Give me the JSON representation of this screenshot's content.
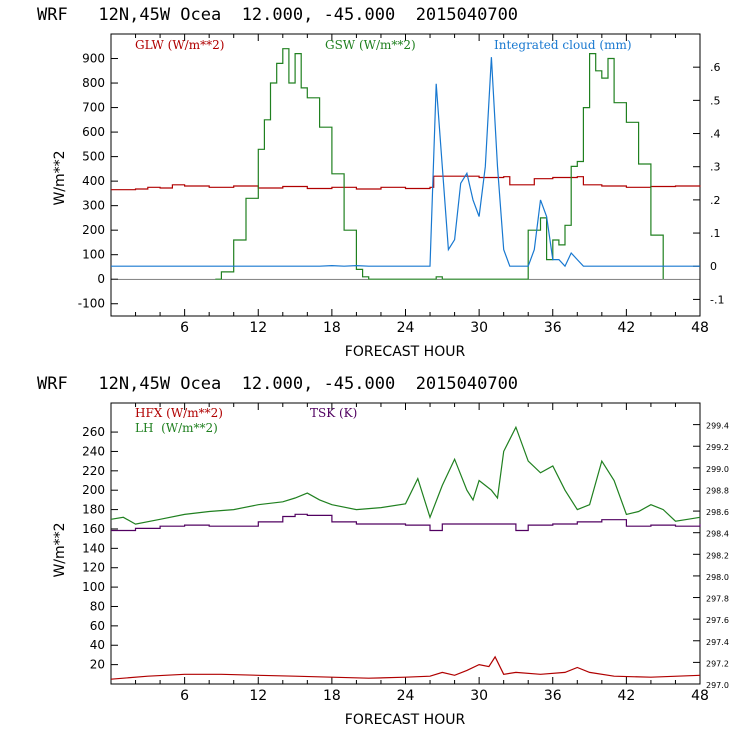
{
  "chart_data": [
    {
      "type": "line",
      "title": "WRF   12N,45W Ocea  12.000, -45.000  2015040700",
      "xlabel": "FORECAST HOUR",
      "ylabel": "W/m**2",
      "xlim": [
        0,
        48
      ],
      "ylim": [
        -150,
        1000
      ],
      "y2lim": [
        -0.15,
        0.7
      ],
      "xticks": [
        "6",
        "12",
        "18",
        "24",
        "30",
        "36",
        "42",
        "48"
      ],
      "xtick_values": [
        6,
        12,
        18,
        24,
        30,
        36,
        42,
        48
      ],
      "yticks": [
        "-100",
        "0",
        "100",
        "200",
        "300",
        "400",
        "500",
        "600",
        "700",
        "800",
        "900"
      ],
      "ytick_values": [
        -100,
        0,
        100,
        200,
        300,
        400,
        500,
        600,
        700,
        800,
        900
      ],
      "y2ticks": [
        "-.1",
        "0",
        ".1",
        ".2",
        ".3",
        ".4",
        ".5",
        ".6"
      ],
      "y2tick_values": [
        -0.1,
        0,
        0.1,
        0.2,
        0.3,
        0.4,
        0.5,
        0.6
      ],
      "series": [
        {
          "name": "GLW (W/m**2)",
          "color": "#b00000",
          "axis": "left",
          "x": [
            0,
            2,
            3,
            4,
            5,
            6,
            8,
            10,
            12,
            14,
            16,
            18,
            20,
            22,
            24,
            26,
            26.3,
            30,
            32,
            32.5,
            34,
            34.5,
            36,
            38,
            38.5,
            40,
            42,
            44,
            46,
            48
          ],
          "y": [
            365,
            368,
            375,
            372,
            385,
            380,
            375,
            380,
            372,
            378,
            370,
            375,
            368,
            375,
            370,
            375,
            420,
            415,
            418,
            385,
            385,
            410,
            415,
            418,
            385,
            380,
            375,
            378,
            380,
            382
          ]
        },
        {
          "name": "GSW (W/m**2)",
          "color": "#208020",
          "axis": "left",
          "x": [
            8.5,
            9,
            10,
            11,
            12,
            12.5,
            13,
            13.5,
            14,
            14.5,
            15,
            15.5,
            16,
            17,
            18,
            19,
            20,
            20.5,
            21,
            26,
            26.5,
            27,
            33.5,
            34,
            35,
            35.5,
            36,
            36.5,
            37,
            37.5,
            38,
            38.5,
            39,
            39.5,
            40,
            40.5,
            41,
            42,
            43,
            44,
            45
          ],
          "y": [
            0,
            30,
            160,
            330,
            530,
            650,
            800,
            880,
            940,
            800,
            920,
            780,
            740,
            620,
            430,
            200,
            40,
            10,
            0,
            0,
            10,
            0,
            0,
            200,
            250,
            80,
            160,
            140,
            220,
            460,
            480,
            700,
            920,
            850,
            820,
            900,
            720,
            640,
            470,
            180,
            0
          ]
        },
        {
          "name": "Integrated cloud (mm)",
          "color": "#1878d0",
          "axis": "right",
          "x": [
            0,
            17,
            18,
            19,
            20,
            21,
            26,
            26.5,
            27,
            27.5,
            28,
            28.5,
            29,
            29.5,
            30,
            30.5,
            31,
            31.5,
            32,
            32.5,
            33,
            34,
            34.5,
            35,
            35.5,
            36,
            36.5,
            37,
            37.5,
            38,
            38.5,
            48
          ],
          "y": [
            0,
            0,
            0.002,
            0,
            0.002,
            0,
            0,
            0.55,
            0.3,
            0.05,
            0.08,
            0.25,
            0.28,
            0.2,
            0.15,
            0.3,
            0.63,
            0.3,
            0.05,
            0,
            0,
            0,
            0.05,
            0.2,
            0.15,
            0.02,
            0.02,
            0,
            0.04,
            0.02,
            0,
            0
          ]
        }
      ]
    },
    {
      "type": "line",
      "title": "WRF   12N,45W Ocea  12.000, -45.000  2015040700",
      "xlabel": "FORECAST HOUR",
      "ylabel": "W/m**2",
      "xlim": [
        0,
        48
      ],
      "ylim": [
        0,
        290
      ],
      "y2lim": [
        297.0,
        299.6
      ],
      "xticks": [
        "6",
        "12",
        "18",
        "24",
        "30",
        "36",
        "42",
        "48"
      ],
      "xtick_values": [
        6,
        12,
        18,
        24,
        30,
        36,
        42,
        48
      ],
      "yticks": [
        "20",
        "40",
        "60",
        "80",
        "100",
        "120",
        "140",
        "160",
        "180",
        "200",
        "220",
        "240",
        "260"
      ],
      "ytick_values": [
        20,
        40,
        60,
        80,
        100,
        120,
        140,
        160,
        180,
        200,
        220,
        240,
        260
      ],
      "y2ticks": [
        "297.0",
        "297.2",
        "297.4",
        "297.6",
        "297.8",
        "298.0",
        "298.2",
        "298.4",
        "298.6",
        "298.8",
        "299.0",
        "299.2",
        "299.4"
      ],
      "y2tick_values": [
        297.0,
        297.2,
        297.4,
        297.6,
        297.8,
        298.0,
        298.2,
        298.4,
        298.6,
        298.8,
        299.0,
        299.2,
        299.4
      ],
      "series": [
        {
          "name": "HFX (W/m**2)",
          "color": "#b00000",
          "axis": "left",
          "x": [
            0,
            3,
            6,
            9,
            12,
            15,
            18,
            21,
            24,
            26,
            27,
            28,
            29,
            30,
            30.8,
            31.3,
            32,
            33,
            35,
            37,
            38,
            39,
            41,
            44,
            48
          ],
          "y": [
            5,
            8,
            10,
            10,
            9,
            8,
            7,
            6,
            7,
            8,
            12,
            9,
            14,
            20,
            18,
            28,
            10,
            12,
            10,
            12,
            17,
            12,
            8,
            7,
            9
          ]
        },
        {
          "name": "LH  (W/m**2)",
          "color": "#208020",
          "axis": "left",
          "x": [
            0,
            1,
            2,
            4,
            6,
            8,
            10,
            12,
            14,
            15,
            16,
            17,
            18,
            20,
            22,
            24,
            25,
            26,
            27,
            28,
            29,
            29.5,
            30,
            30.5,
            31,
            31.5,
            32,
            33,
            34,
            35,
            36,
            37,
            38,
            39,
            40,
            41,
            42,
            43,
            44,
            45,
            46,
            47,
            48
          ],
          "y": [
            170,
            172,
            165,
            170,
            175,
            178,
            180,
            185,
            188,
            192,
            197,
            190,
            185,
            180,
            182,
            186,
            212,
            172,
            205,
            232,
            200,
            190,
            210,
            205,
            200,
            192,
            240,
            265,
            230,
            218,
            225,
            200,
            180,
            185,
            230,
            210,
            175,
            178,
            185,
            180,
            168,
            170,
            172
          ]
        },
        {
          "name": "TSK (K)",
          "color": "#500060",
          "axis": "right",
          "x": [
            0,
            2,
            4,
            6,
            8,
            10,
            12,
            14,
            15,
            16,
            18,
            20,
            22,
            24,
            26,
            27,
            28,
            30,
            32,
            33,
            34,
            36,
            38,
            40,
            42,
            44,
            46,
            48
          ],
          "y": [
            298.42,
            298.44,
            298.46,
            298.47,
            298.46,
            298.46,
            298.5,
            298.55,
            298.57,
            298.56,
            298.5,
            298.48,
            298.48,
            298.47,
            298.42,
            298.48,
            298.48,
            298.48,
            298.48,
            298.42,
            298.47,
            298.48,
            298.5,
            298.52,
            298.46,
            298.47,
            298.46,
            298.48
          ]
        }
      ]
    }
  ]
}
